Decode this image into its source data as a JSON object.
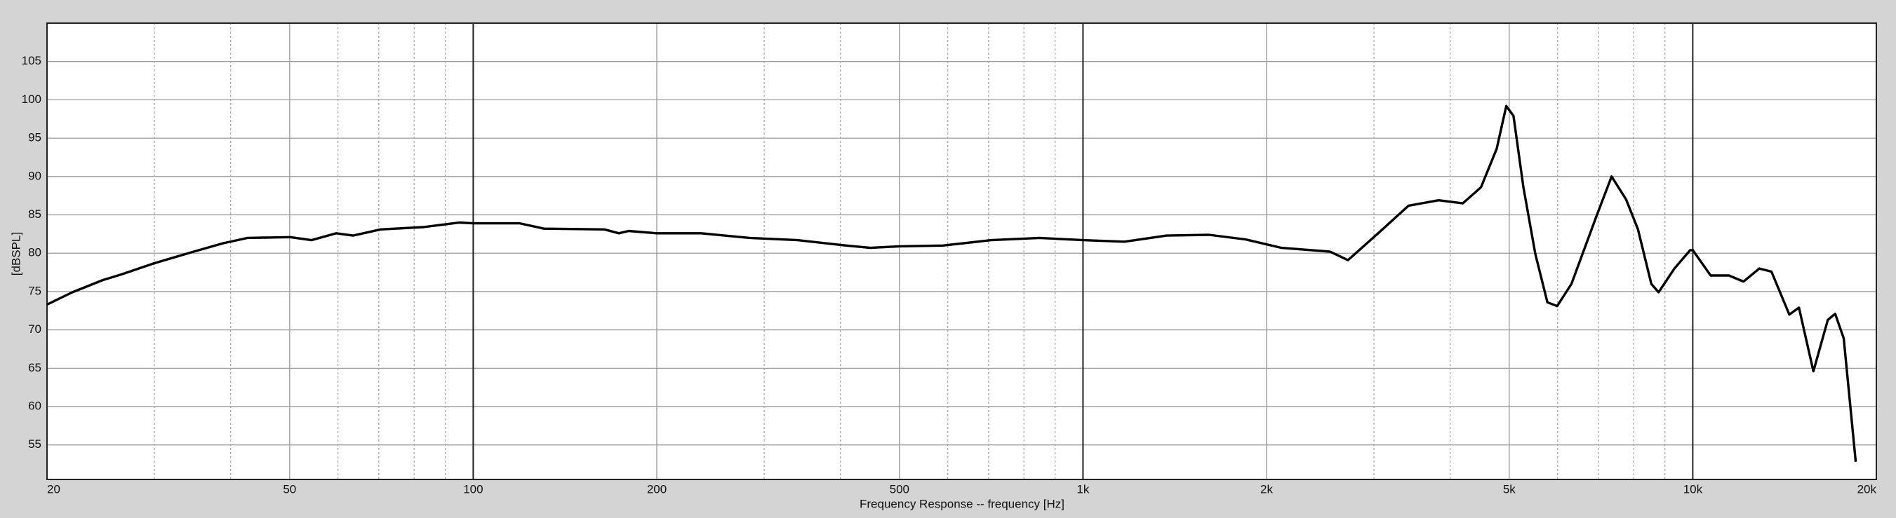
{
  "chart_data": {
    "type": "line",
    "xlabel": "Frequency Response -- frequency [Hz]",
    "ylabel": "[dBSPL]",
    "xscale": "log",
    "xlim": [
      20,
      20000
    ],
    "ylim": [
      50.5,
      110
    ],
    "xticks": [
      20,
      50,
      100,
      200,
      500,
      {
        "value": 1000,
        "label": "1k"
      },
      {
        "value": 2000,
        "label": "2k"
      },
      {
        "value": 5000,
        "label": "5k"
      },
      {
        "value": 10000,
        "label": "10k"
      },
      {
        "value": 20000,
        "label": "20k"
      }
    ],
    "xminorticks": [
      30,
      40,
      60,
      70,
      80,
      90,
      300,
      400,
      600,
      700,
      800,
      900,
      3000,
      4000,
      6000,
      7000,
      8000,
      9000
    ],
    "yticks": [
      55,
      60,
      65,
      70,
      75,
      80,
      85,
      90,
      95,
      100,
      105
    ],
    "grid": true,
    "series": [
      {
        "color": "#000000",
        "x": [
          20,
          22.0,
          24.7,
          26.4,
          30.0,
          34.8,
          38.9,
          42.7,
          50.1,
          54.3,
          59.6,
          63.5,
          70.5,
          82.8,
          94.9,
          100,
          108.8,
          119.2,
          130.6,
          164.1,
          173.4,
          179.9,
          200,
          236.4,
          283.8,
          340.5,
          409.1,
          448,
          500,
          589,
          707,
          849,
          1000,
          1169,
          1371,
          1609,
          1845,
          2116,
          2541,
          2720,
          3048,
          3419,
          3830,
          4196,
          4495,
          4768,
          4944,
          5082,
          5275,
          5518,
          5775,
          5991,
          6325,
          6934,
          7360,
          7775,
          8131,
          8550,
          8790,
          9330,
          9903,
          10000,
          10697,
          11460,
          12110,
          12855,
          13460,
          14400,
          14930,
          15770,
          16650,
          17120,
          17680,
          18500
        ],
        "values": [
          73.3,
          74.9,
          76.5,
          77.2,
          78.7,
          80.2,
          81.3,
          82.0,
          82.1,
          81.7,
          82.6,
          82.3,
          83.1,
          83.4,
          84.0,
          83.9,
          83.9,
          83.9,
          83.2,
          83.1,
          82.6,
          82.9,
          82.6,
          82.6,
          82.0,
          81.7,
          81.0,
          80.7,
          80.9,
          81.0,
          81.7,
          82.0,
          81.7,
          81.5,
          82.3,
          82.4,
          81.8,
          80.7,
          80.2,
          79.1,
          82.6,
          86.2,
          86.9,
          86.5,
          88.6,
          93.6,
          99.2,
          97.9,
          88.6,
          79.9,
          73.6,
          73.1,
          76.0,
          84.6,
          90.0,
          87.0,
          83.1,
          76.0,
          74.9,
          78.0,
          80.4,
          80.4,
          77.1,
          77.1,
          76.3,
          78.0,
          77.6,
          72.0,
          72.9,
          64.6,
          71.3,
          72.1,
          68.9,
          52.8
        ]
      }
    ]
  }
}
